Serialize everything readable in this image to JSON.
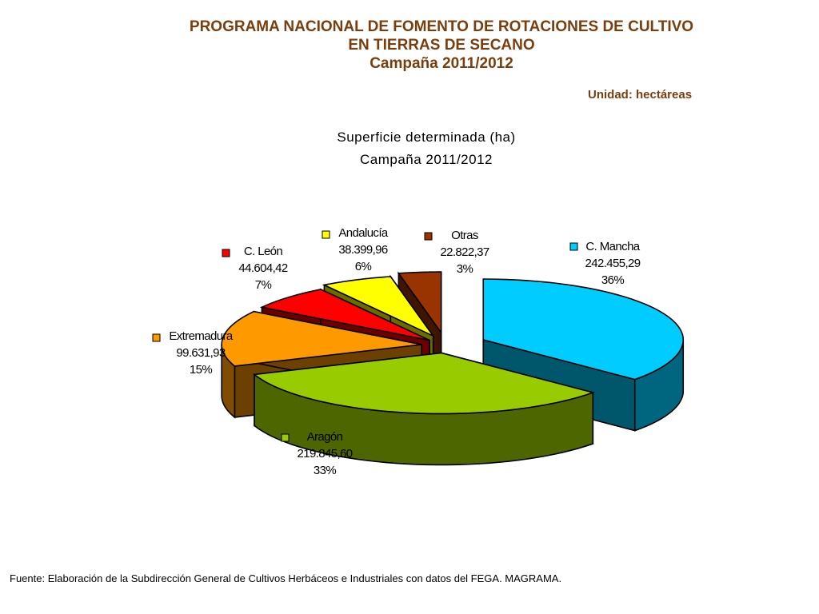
{
  "header": {
    "line1": "PROGRAMA NACIONAL DE FOMENTO DE ROTACIONES DE CULTIVO",
    "line2": "EN TIERRAS DE SECANO",
    "line3": "Campaña 2011/2012",
    "unit": "Unidad: hectáreas"
  },
  "chart_data": {
    "type": "pie",
    "title": "Superficie determinada (ha)",
    "subtitle": "Campaña 2011/2012",
    "slices": [
      {
        "name": "C. Mancha",
        "value": 242455.29,
        "value_label": "242.455,29",
        "percent_label": "36%",
        "color": "#00ccff"
      },
      {
        "name": "Aragón",
        "value": 219845.6,
        "value_label": "219.845,60",
        "percent_label": "33%",
        "color": "#99cc00"
      },
      {
        "name": "Extremadura",
        "value": 99631.93,
        "value_label": "99.631,93",
        "percent_label": "15%",
        "color": "#ff9900"
      },
      {
        "name": "C. León",
        "value": 44604.42,
        "value_label": "44.604,42",
        "percent_label": "7%",
        "color": "#ff0000"
      },
      {
        "name": "Andalucía",
        "value": 38399.96,
        "value_label": "38.399,96",
        "percent_label": "6%",
        "color": "#ffff00"
      },
      {
        "name": "Otras",
        "value": 22822.37,
        "value_label": "22.822,37",
        "percent_label": "3%",
        "color": "#993300"
      }
    ]
  },
  "footer": "Fuente: Elaboración de la Subdirección General de Cultivos Herbáceos e Industriales con datos del FEGA. MAGRAMA."
}
